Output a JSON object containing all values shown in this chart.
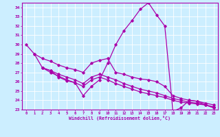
{
  "xlabel": "Windchill (Refroidissement éolien,°C)",
  "bg_color": "#cceeff",
  "grid_color": "#ffffff",
  "line_color": "#aa00aa",
  "xlim": [
    -0.5,
    23.5
  ],
  "ylim": [
    23,
    34.5
  ],
  "xticks": [
    0,
    1,
    2,
    3,
    4,
    5,
    6,
    7,
    8,
    9,
    10,
    11,
    12,
    13,
    14,
    15,
    16,
    17,
    18,
    19,
    20,
    21,
    22,
    23
  ],
  "yticks": [
    23,
    24,
    25,
    26,
    27,
    28,
    29,
    30,
    31,
    32,
    33,
    34
  ],
  "lines": [
    {
      "x": [
        0,
        1,
        2,
        3,
        4,
        5,
        6,
        7,
        8,
        9,
        10,
        11,
        12,
        13,
        14,
        15,
        16,
        17,
        18,
        19,
        20,
        21,
        22,
        23
      ],
      "y": [
        30.0,
        29.0,
        27.5,
        27.2,
        26.5,
        26.1,
        25.9,
        24.5,
        25.5,
        26.2,
        28.0,
        30.0,
        31.5,
        32.6,
        33.8,
        34.5,
        33.2,
        32.0,
        22.8,
        23.2,
        24.0,
        23.9,
        23.5,
        23.2
      ]
    },
    {
      "x": [
        1,
        2,
        3,
        4,
        5,
        6,
        7,
        8,
        9,
        10,
        11,
        12,
        13,
        14,
        15,
        16,
        17,
        18,
        19,
        20,
        21,
        22,
        23
      ],
      "y": [
        29.0,
        28.5,
        28.2,
        27.8,
        27.5,
        27.3,
        27.0,
        28.0,
        28.3,
        28.5,
        27.0,
        26.8,
        26.5,
        26.3,
        26.2,
        26.0,
        25.5,
        24.5,
        24.2,
        24.0,
        23.9,
        23.7,
        23.5
      ]
    },
    {
      "x": [
        2,
        3,
        4,
        5,
        6,
        7,
        8,
        9,
        10,
        11,
        12,
        13,
        14,
        15,
        16,
        17,
        18,
        19,
        20,
        21,
        22,
        23
      ],
      "y": [
        27.5,
        27.2,
        26.8,
        26.5,
        26.2,
        25.8,
        26.5,
        26.8,
        26.5,
        26.2,
        25.8,
        25.5,
        25.2,
        25.0,
        24.8,
        24.5,
        24.2,
        24.0,
        23.8,
        23.7,
        23.5,
        23.3
      ]
    },
    {
      "x": [
        2,
        3,
        4,
        5,
        6,
        7,
        8,
        9,
        10,
        11,
        12,
        13,
        14,
        15,
        16,
        17,
        18,
        19,
        20,
        21,
        22,
        23
      ],
      "y": [
        27.5,
        27.0,
        26.6,
        26.2,
        25.9,
        25.5,
        26.2,
        26.5,
        26.2,
        25.8,
        25.5,
        25.2,
        24.9,
        24.7,
        24.5,
        24.3,
        24.0,
        23.8,
        23.7,
        23.6,
        23.5,
        23.2
      ]
    }
  ]
}
